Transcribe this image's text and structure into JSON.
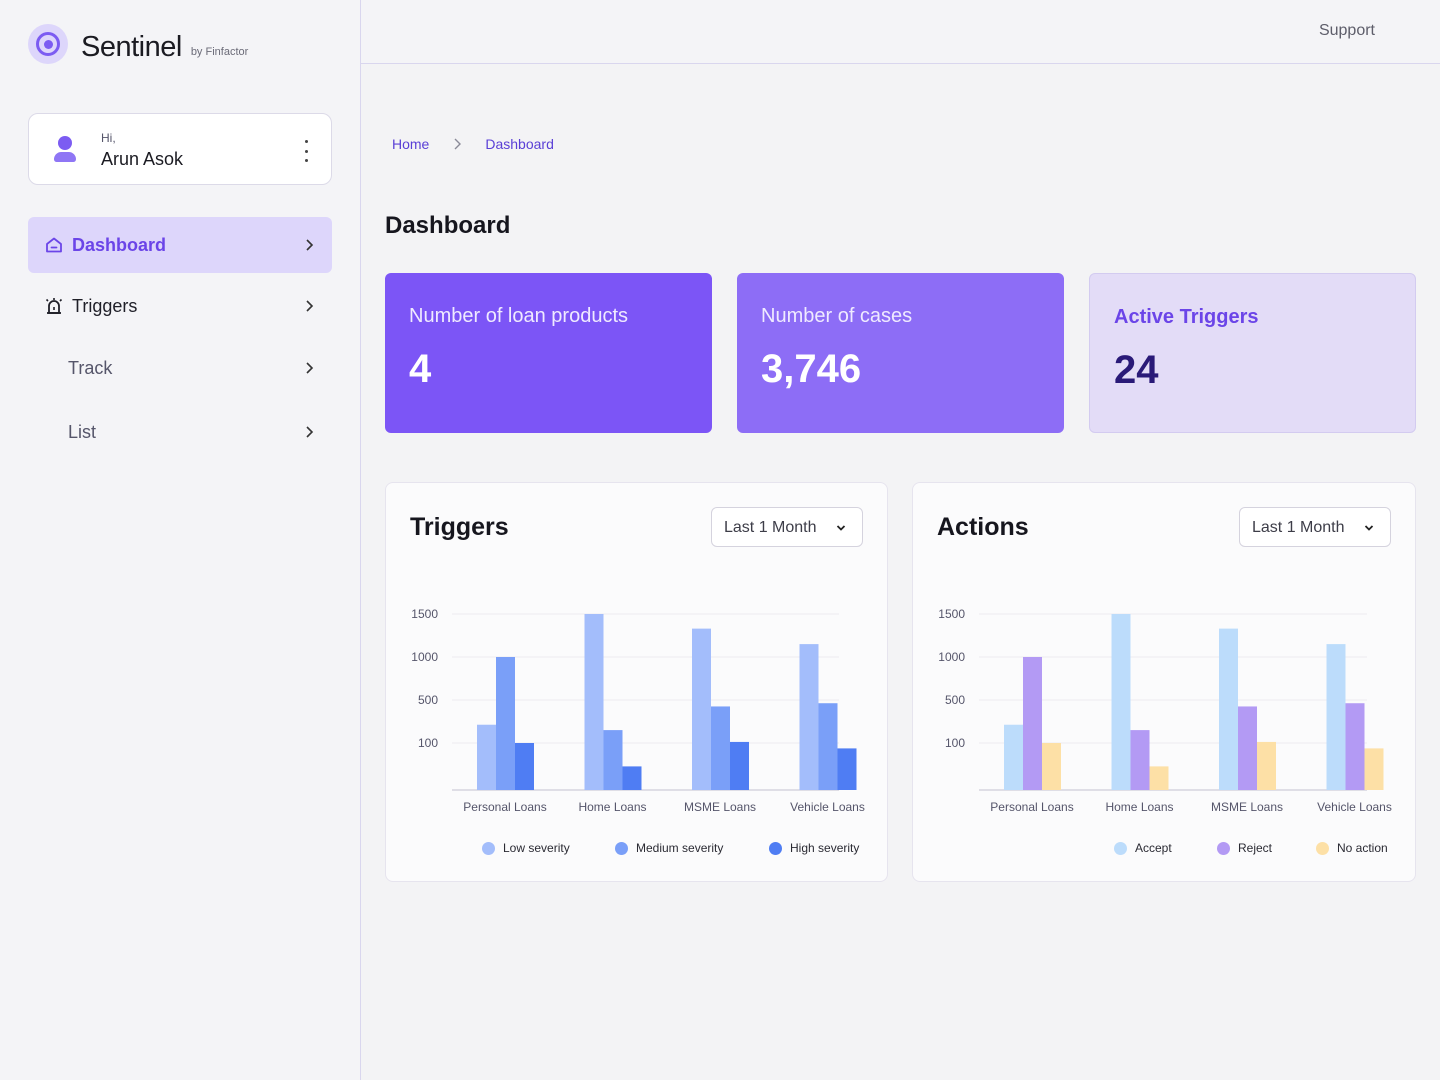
{
  "brand": {
    "name": "Sentinel",
    "sub": "by Finfactor"
  },
  "user": {
    "greeting": "Hi,",
    "name": "Arun Asok"
  },
  "nav": [
    {
      "label": "Dashboard",
      "icon": "home-icon",
      "active": true
    },
    {
      "label": "Triggers",
      "icon": "alarm-icon",
      "active": false
    },
    {
      "label": "Track",
      "active": false
    },
    {
      "label": "List",
      "active": false
    }
  ],
  "topbar": {
    "support": "Support"
  },
  "breadcrumb": {
    "home": "Home",
    "current": "Dashboard"
  },
  "page_title": "Dashboard",
  "stats": [
    {
      "label": "Number of loan products",
      "value": "4"
    },
    {
      "label": "Number of cases",
      "value": "3,746"
    },
    {
      "label": "Active Triggers",
      "value": "24"
    }
  ],
  "colors": {
    "accent": "#7c55f6",
    "triggers": [
      "#a3bdfb",
      "#7a9ff8",
      "#4f7df3"
    ],
    "actions": [
      "#bcdcfb",
      "#b39af4",
      "#fde0a6"
    ]
  },
  "panels": {
    "triggers": {
      "title": "Triggers",
      "range": "Last 1 Month"
    },
    "actions": {
      "title": "Actions",
      "range": "Last 1 Month"
    }
  },
  "chart_data": [
    {
      "type": "bar",
      "title": "Triggers",
      "categories": [
        "Personal Loans",
        "Home Loans",
        "MSME Loans",
        "Vehicle Loans"
      ],
      "yticks": [
        100,
        500,
        1000,
        1500
      ],
      "series": [
        {
          "name": "Low severity",
          "values": [
            270,
            1500,
            1330,
            1150
          ]
        },
        {
          "name": "Medium severity",
          "values": [
            1000,
            220,
            440,
            470
          ]
        },
        {
          "name": "High severity",
          "values": [
            100,
            -30,
            110,
            70
          ]
        }
      ]
    },
    {
      "type": "bar",
      "title": "Actions",
      "categories": [
        "Personal Loans",
        "Home Loans",
        "MSME Loans",
        "Vehicle Loans"
      ],
      "yticks": [
        100,
        500,
        1000,
        1500
      ],
      "series": [
        {
          "name": "Accept",
          "values": [
            270,
            1500,
            1330,
            1150
          ]
        },
        {
          "name": "Reject",
          "values": [
            1000,
            220,
            440,
            470
          ]
        },
        {
          "name": "No action",
          "values": [
            100,
            -30,
            110,
            70
          ]
        }
      ]
    }
  ]
}
